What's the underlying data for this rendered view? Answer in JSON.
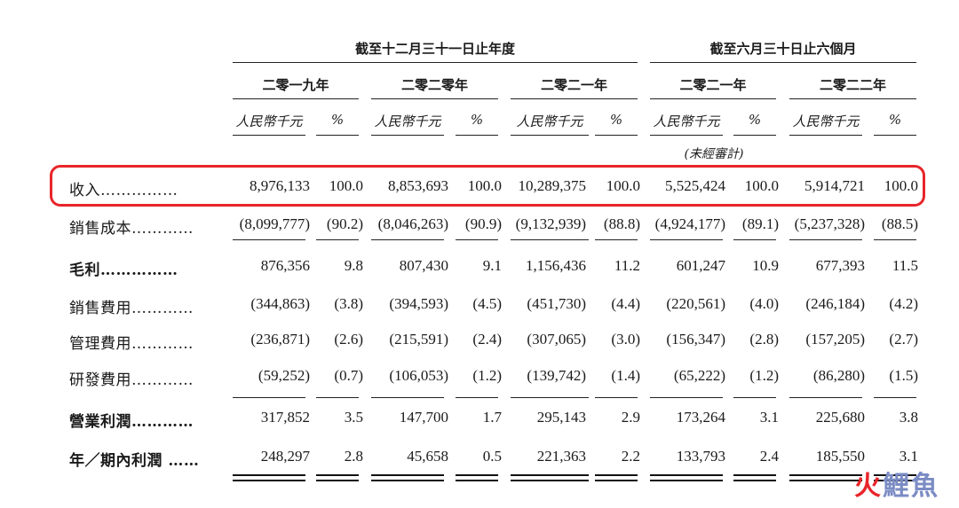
{
  "header": {
    "groups": [
      {
        "label": "截至十二月三十一日止年度",
        "left": 262,
        "width": 456
      },
      {
        "label": "截至六月三十日止六個月",
        "left": 732,
        "width": 300
      }
    ],
    "years": [
      "二零一九年",
      "二零二零年",
      "二零二一年",
      "二零二一年",
      "二零二二年"
    ],
    "unit_amount": "人民幣千元",
    "unit_pct": "%",
    "unaudited_note": "(未經審計)"
  },
  "rows": [
    {
      "label": "收入……………",
      "bold": false,
      "values": [
        "8,976,133",
        "100.0",
        "8,853,693",
        "100.0",
        "10,289,375",
        "100.0",
        "5,525,424",
        "100.0",
        "5,914,721",
        "100.0"
      ]
    },
    {
      "label": "銷售成本…………",
      "bold": false,
      "values": [
        "(8,099,777)",
        "(90.2)",
        "(8,046,263)",
        "(90.9)",
        "(9,132,939)",
        "(88.8)",
        "(4,924,177)",
        "(89.1)",
        "(5,237,328)",
        "(88.5)"
      ]
    },
    {
      "label": "毛利……………",
      "bold": true,
      "values": [
        "876,356",
        "9.8",
        "807,430",
        "9.1",
        "1,156,436",
        "11.2",
        "601,247",
        "10.9",
        "677,393",
        "11.5"
      ]
    },
    {
      "label": "銷售費用…………",
      "bold": false,
      "values": [
        "(344,863)",
        "(3.8)",
        "(394,593)",
        "(4.5)",
        "(451,730)",
        "(4.4)",
        "(220,561)",
        "(4.0)",
        "(246,184)",
        "(4.2)"
      ]
    },
    {
      "label": "管理費用…………",
      "bold": false,
      "values": [
        "(236,871)",
        "(2.6)",
        "(215,591)",
        "(2.4)",
        "(307,065)",
        "(3.0)",
        "(156,347)",
        "(2.8)",
        "(157,205)",
        "(2.7)"
      ]
    },
    {
      "label": "研發費用…………",
      "bold": false,
      "values": [
        "(59,252)",
        "(0.7)",
        "(106,053)",
        "(1.2)",
        "(139,742)",
        "(1.4)",
        "(65,222)",
        "(1.2)",
        "(86,280)",
        "(1.5)"
      ]
    },
    {
      "label": "營業利潤…………",
      "bold": true,
      "values": [
        "317,852",
        "3.5",
        "147,700",
        "1.7",
        "295,143",
        "2.9",
        "173,264",
        "3.1",
        "225,680",
        "3.8"
      ]
    },
    {
      "label": "年／期內利潤 ……",
      "bold": true,
      "values": [
        "248,297",
        "2.8",
        "45,658",
        "0.5",
        "221,363",
        "2.2",
        "133,793",
        "2.4",
        "185,550",
        "3.1"
      ]
    }
  ],
  "watermark": {
    "part1": "火",
    "part2": "鯉魚"
  }
}
